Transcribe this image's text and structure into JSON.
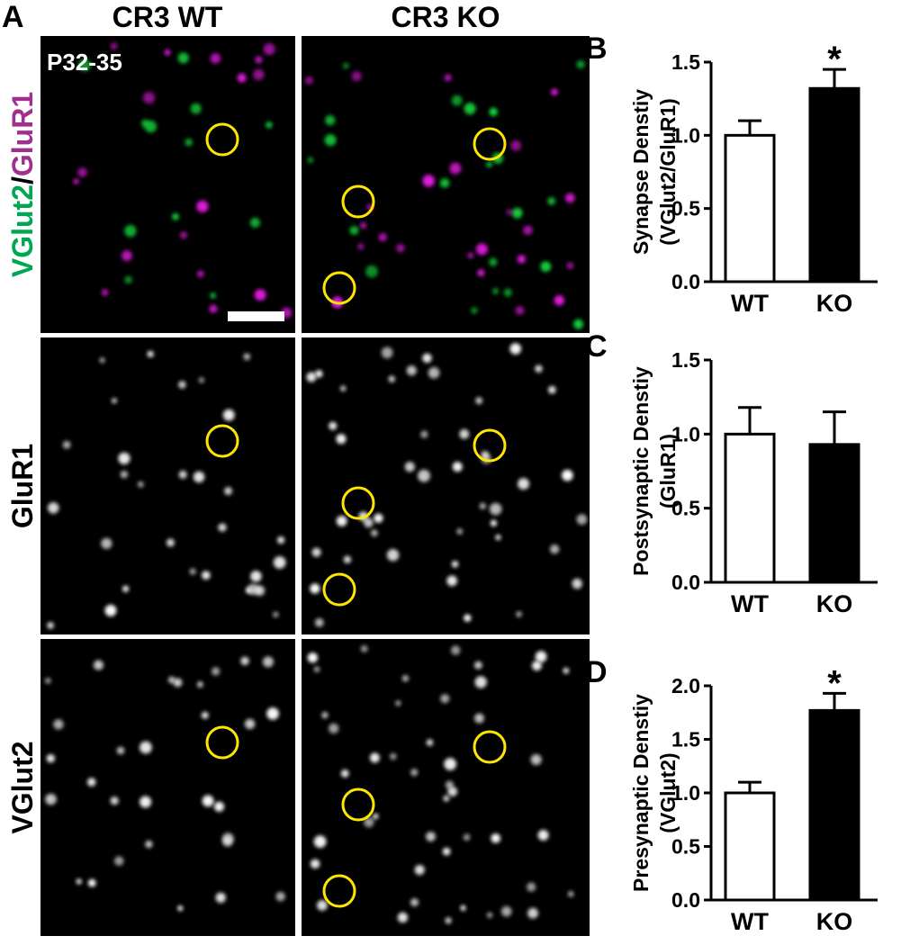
{
  "panel_a": {
    "label": "A",
    "columns": [
      "CR3 WT",
      "CR3 KO"
    ],
    "age": "P32-35",
    "rows": [
      {
        "label": [
          "VGlut2",
          "/",
          "GluR1"
        ]
      },
      {
        "label": "GluR1"
      },
      {
        "label": "VGlut2"
      }
    ]
  },
  "chart_data": [
    {
      "type": "bar",
      "panel": "B",
      "title": [
        "Synapse Denstiy",
        "(VGlut2/GluR1)"
      ],
      "categories": [
        "WT",
        "KO"
      ],
      "values": [
        1.0,
        1.32
      ],
      "errors": [
        0.1,
        0.13
      ],
      "colors": [
        "#ffffff",
        "#000000"
      ],
      "ylim": [
        0,
        1.5
      ],
      "yticks": [
        {
          "value": 0,
          "label": "0.0"
        },
        0.5,
        {
          "value": 1,
          "label": "1.0"
        },
        1.5
      ],
      "annotations": [
        null,
        "*"
      ]
    },
    {
      "type": "bar",
      "panel": "C",
      "title": [
        "Postsynaptic Denstiy",
        "(GluR1)"
      ],
      "categories": [
        "WT",
        "KO"
      ],
      "values": [
        1.0,
        0.93
      ],
      "errors": [
        0.18,
        0.22
      ],
      "colors": [
        "#ffffff",
        "#000000"
      ],
      "ylim": [
        0,
        1.5
      ],
      "yticks": [
        {
          "value": 0,
          "label": "0.0"
        },
        0.5,
        {
          "value": 1,
          "label": "1.0"
        },
        1.5
      ],
      "annotations": [
        null,
        null
      ]
    },
    {
      "type": "bar",
      "panel": "D",
      "title": [
        "Presynaptic Denstiy",
        "(VGlut2)"
      ],
      "categories": [
        "WT",
        "KO"
      ],
      "values": [
        1.0,
        1.77
      ],
      "errors": [
        0.1,
        0.16
      ],
      "colors": [
        "#ffffff",
        "#000000"
      ],
      "ylim": [
        0,
        2.0
      ],
      "yticks": [
        {
          "value": 0,
          "label": "0.0"
        },
        0.5,
        {
          "value": 1,
          "label": "1.0"
        },
        1.5,
        {
          "value": 2,
          "label": "2.0"
        }
      ],
      "annotations": [
        null,
        "*"
      ]
    }
  ]
}
